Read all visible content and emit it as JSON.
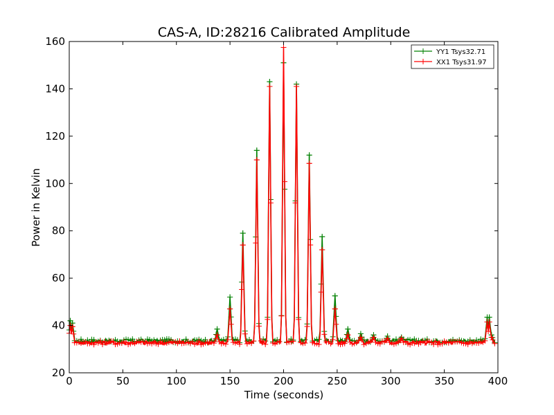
{
  "chart_data": {
    "type": "line",
    "title": "CAS-A, ID:28216 Calibrated Amplitude",
    "xlabel": "Time (seconds)",
    "ylabel": "Power in Kelvin",
    "xlim": [
      0,
      400
    ],
    "ylim": [
      20,
      160
    ],
    "xticks": [
      0,
      50,
      100,
      150,
      200,
      250,
      300,
      350,
      400
    ],
    "yticks": [
      20,
      40,
      60,
      80,
      100,
      120,
      140,
      160
    ],
    "grid": false,
    "legend_position": "top-right",
    "marker": "plus",
    "baseline": {
      "YY1": 33.5,
      "XX1": 32.7
    },
    "series": [
      {
        "name": "YY1 Tsys32.71",
        "color": "#008000",
        "points": [
          [
            1,
            42
          ],
          [
            3,
            41
          ],
          [
            5,
            33.5
          ],
          [
            138,
            38.5
          ],
          [
            150,
            52
          ],
          [
            162,
            79
          ],
          [
            175,
            114
          ],
          [
            187,
            143
          ],
          [
            200,
            151
          ],
          [
            212,
            142
          ],
          [
            224,
            112
          ],
          [
            236,
            77.5
          ],
          [
            248,
            52.5
          ],
          [
            260,
            38.5
          ],
          [
            272,
            36.5
          ],
          [
            284,
            36
          ],
          [
            297,
            35.5
          ],
          [
            310,
            35
          ],
          [
            390,
            43.5
          ],
          [
            392,
            43.5
          ],
          [
            394,
            36
          ]
        ]
      },
      {
        "name": "XX1 Tsys31.97",
        "color": "#ff0000",
        "points": [
          [
            1,
            40
          ],
          [
            3,
            39.5
          ],
          [
            5,
            32.7
          ],
          [
            138,
            36
          ],
          [
            150,
            47
          ],
          [
            162,
            74
          ],
          [
            175,
            110
          ],
          [
            187,
            141
          ],
          [
            200,
            157.5
          ],
          [
            212,
            141
          ],
          [
            224,
            108.5
          ],
          [
            236,
            72
          ],
          [
            248,
            47
          ],
          [
            260,
            36
          ],
          [
            272,
            35
          ],
          [
            284,
            35
          ],
          [
            297,
            34.5
          ],
          [
            310,
            34.5
          ],
          [
            390,
            41.5
          ],
          [
            392,
            41.5
          ],
          [
            394,
            35
          ]
        ]
      }
    ]
  }
}
